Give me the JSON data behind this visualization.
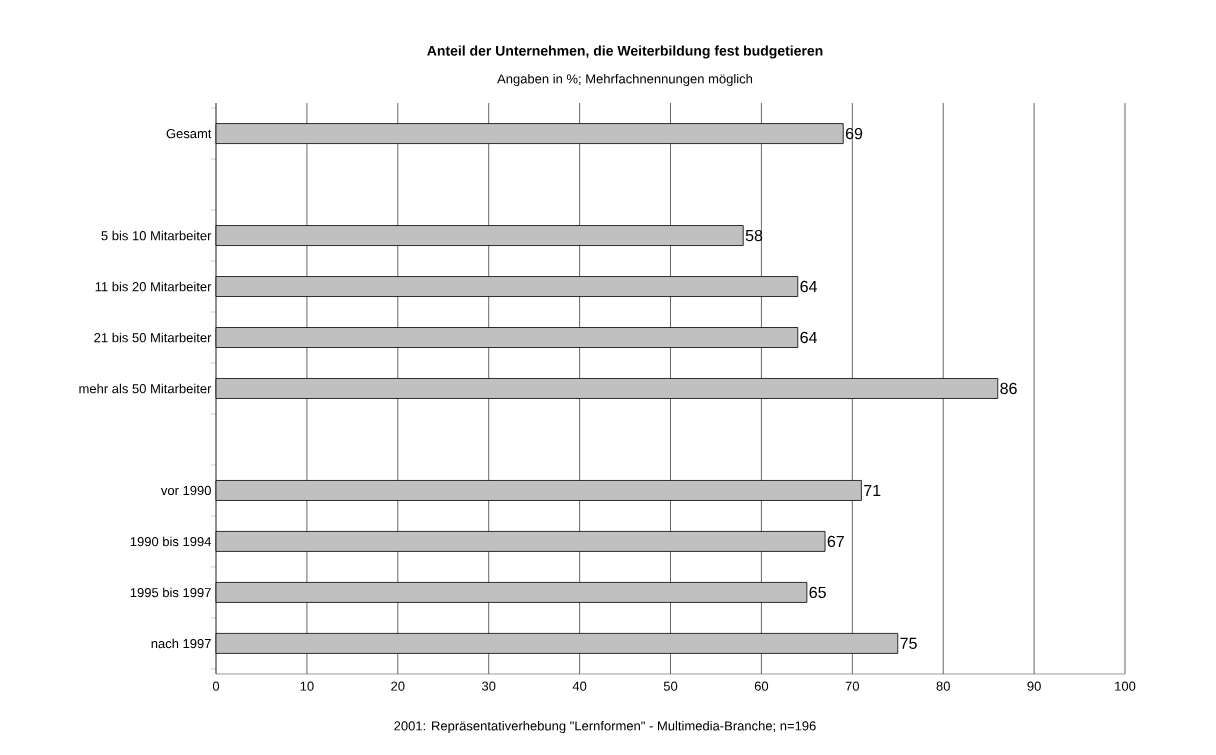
{
  "chart_data": {
    "type": "bar",
    "orientation": "horizontal",
    "title": "Anteil der Unternehmen, die Weiterbildung fest budgetieren",
    "subtitle": "Angaben in %; Mehrfachnennungen möglich",
    "categories": [
      "Gesamt",
      null,
      "5 bis 10 Mitarbeiter",
      "11 bis 20 Mitarbeiter",
      "21 bis 50 Mitarbeiter",
      "mehr als 50 Mitarbeiter",
      null,
      "vor 1990",
      "1990 bis 1994",
      "1995 bis 1997",
      "nach 1997"
    ],
    "values": [
      69,
      null,
      58,
      64,
      64,
      86,
      null,
      71,
      67,
      65,
      75
    ],
    "color": "#c0c0c0",
    "xlim": [
      0,
      100
    ],
    "xticks": [
      0,
      10,
      20,
      30,
      40,
      50,
      60,
      70,
      80,
      90,
      100
    ],
    "grid": "x",
    "data_labels": true,
    "annotations": [
      "2001: Repräsentativerhebung \"Lernformen\" - Multimedia-Branche; n=196"
    ]
  }
}
